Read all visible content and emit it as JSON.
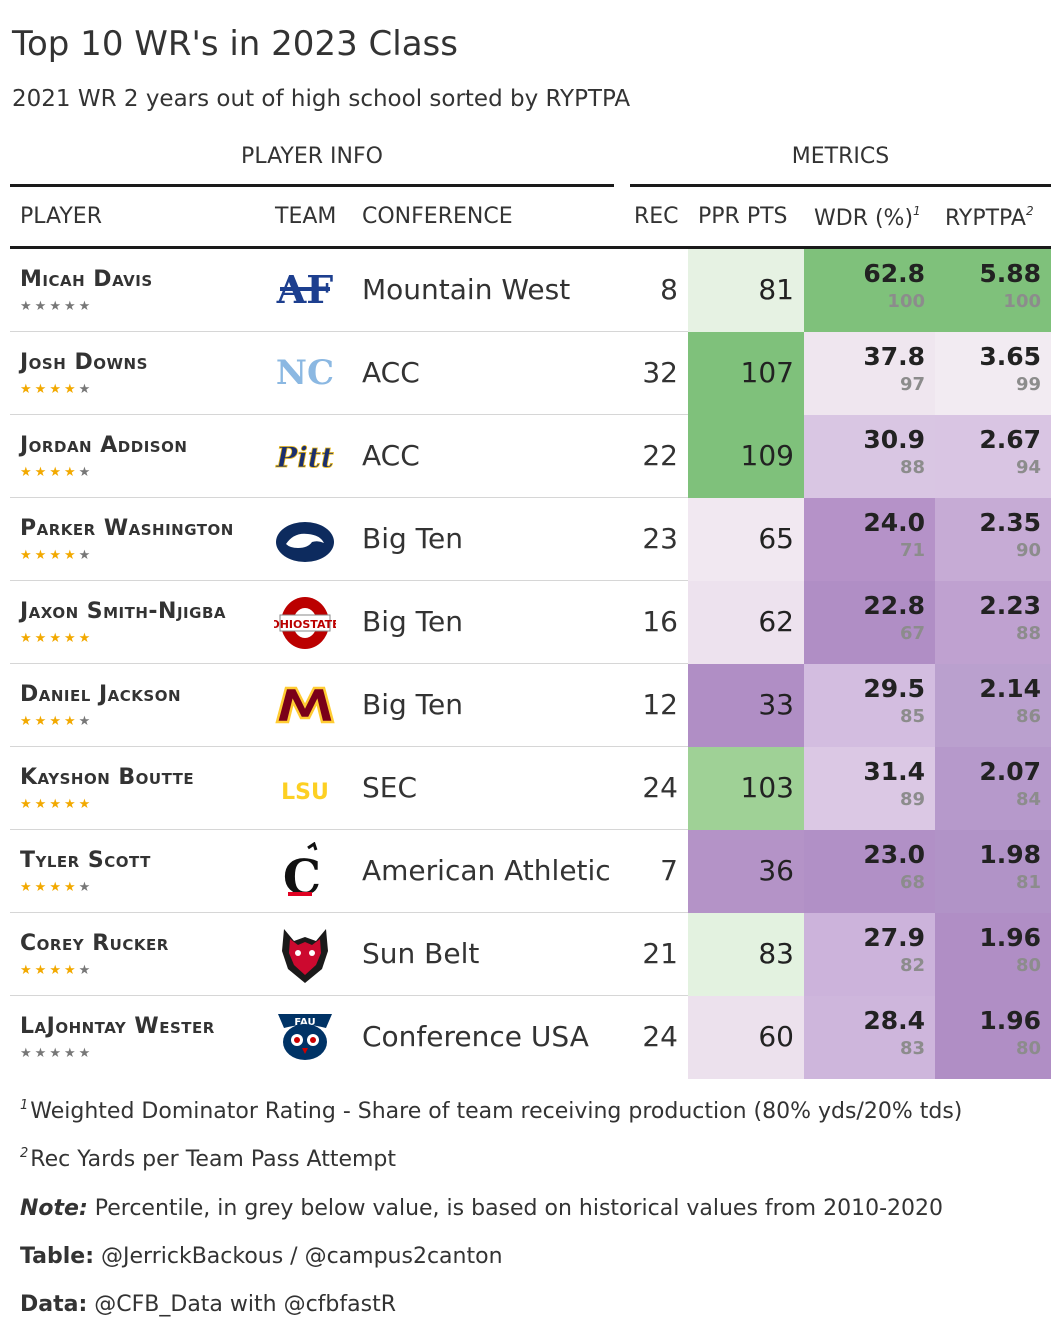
{
  "title": "Top 10 WR's in 2023 Class",
  "subtitle": "2021 WR 2 years out of high school sorted by RYPTPA",
  "spanners": {
    "player_info": "PLAYER INFO",
    "metrics": "METRICS"
  },
  "columns": {
    "player": "PLAYER",
    "team": "TEAM",
    "conference": "CONFERENCE",
    "rec": "REC",
    "ppr": "PPR PTS",
    "wdr": "WDR (%)",
    "wdr_mark": "1",
    "ryptpa": "RYPTPA",
    "ryptpa_mark": "2"
  },
  "colors": {
    "green_strong": "#7fc17b",
    "green_mid": "#9fd196",
    "green_light": "#e3f2e0",
    "purple_strong": "#b08ec5",
    "purple_mid": "#c7acd5",
    "purple_light": "#dcc9e5",
    "neutral": "#f1e8f1",
    "star_on": "#f2a900",
    "star_off": "#777777"
  },
  "chart_data": {
    "type": "table",
    "rows": [
      {
        "player": "Micah Davis",
        "team_logo": "air-force-logo",
        "stars": 0,
        "conference": "Mountain West",
        "rec": "8",
        "ppr": "81",
        "wdr": "62.8",
        "wdr_pct": "100",
        "ryptpa": "5.88",
        "ryptpa_pct": "100",
        "ppr_color": "#e6f2e3",
        "wdr_color": "#7fc17b",
        "ryp_color": "#7fc17b"
      },
      {
        "player": "Josh Downs",
        "team_logo": "unc-logo",
        "stars": 4,
        "conference": "ACC",
        "rec": "32",
        "ppr": "107",
        "wdr": "37.8",
        "wdr_pct": "97",
        "ryptpa": "3.65",
        "ryptpa_pct": "99",
        "ppr_color": "#7fc17b",
        "wdr_color": "#efe6ef",
        "ryp_color": "#f2ebf2"
      },
      {
        "player": "Jordan Addison",
        "team_logo": "pitt-logo",
        "stars": 4,
        "conference": "ACC",
        "rec": "22",
        "ppr": "109",
        "wdr": "30.9",
        "wdr_pct": "88",
        "ryptpa": "2.67",
        "ryptpa_pct": "94",
        "ppr_color": "#7fc17b",
        "wdr_color": "#d9c6e3",
        "ryp_color": "#d9c5e3"
      },
      {
        "player": "Parker Washington",
        "team_logo": "penn-state-logo",
        "stars": 4,
        "conference": "Big Ten",
        "rec": "23",
        "ppr": "65",
        "wdr": "24.0",
        "wdr_pct": "71",
        "ryptpa": "2.35",
        "ryptpa_pct": "90",
        "ppr_color": "#f1e8f1",
        "wdr_color": "#b592c8",
        "ryp_color": "#c6abd5"
      },
      {
        "player": "Jaxon Smith-Njigba",
        "team_logo": "ohio-state-logo",
        "stars": 5,
        "conference": "Big Ten",
        "rec": "16",
        "ppr": "62",
        "wdr": "22.8",
        "wdr_pct": "67",
        "ryptpa": "2.23",
        "ryptpa_pct": "88",
        "ppr_color": "#ede2ee",
        "wdr_color": "#b08ec5",
        "ryp_color": "#bfa1d0"
      },
      {
        "player": "Daniel Jackson",
        "team_logo": "minnesota-logo",
        "stars": 4,
        "conference": "Big Ten",
        "rec": "12",
        "ppr": "33",
        "wdr": "29.5",
        "wdr_pct": "85",
        "ryptpa": "2.14",
        "ryptpa_pct": "86",
        "ppr_color": "#b08ec5",
        "wdr_color": "#d3bde0",
        "ryp_color": "#baa0ce"
      },
      {
        "player": "Kayshon Boutte",
        "team_logo": "lsu-logo",
        "stars": 5,
        "conference": "SEC",
        "rec": "24",
        "ppr": "103",
        "wdr": "31.4",
        "wdr_pct": "89",
        "ryptpa": "2.07",
        "ryptpa_pct": "84",
        "ppr_color": "#9fd196",
        "wdr_color": "#dbc8e4",
        "ryp_color": "#b699cb"
      },
      {
        "player": "Tyler Scott",
        "team_logo": "cincinnati-logo",
        "stars": 4,
        "conference": "American Athletic",
        "rec": "7",
        "ppr": "36",
        "wdr": "23.0",
        "wdr_pct": "68",
        "ryptpa": "1.98",
        "ryptpa_pct": "81",
        "ppr_color": "#b493c7",
        "wdr_color": "#b190c6",
        "ryp_color": "#b193c7"
      },
      {
        "player": "Corey Rucker",
        "team_logo": "arkansas-state-logo",
        "stars": 4,
        "conference": "Sun Belt",
        "rec": "21",
        "ppr": "83",
        "wdr": "27.9",
        "wdr_pct": "82",
        "ryptpa": "1.96",
        "ryptpa_pct": "80",
        "ppr_color": "#e3f2e0",
        "wdr_color": "#ccb3db",
        "ryp_color": "#b08ec5"
      },
      {
        "player": "LaJohntay Wester",
        "team_logo": "fau-logo",
        "stars": 0,
        "conference": "Conference USA",
        "rec": "24",
        "ppr": "60",
        "wdr": "28.4",
        "wdr_pct": "83",
        "ryptpa": "1.96",
        "ryptpa_pct": "80",
        "ppr_color": "#ece1ed",
        "wdr_color": "#ceb6dc",
        "ryp_color": "#b08ec5"
      }
    ]
  },
  "footnotes": {
    "fn1_mark": "1",
    "fn1": "Weighted Dominator Rating - Share of team receiving production (80% yds/20% tds)",
    "fn2_mark": "2",
    "fn2": "Rec Yards per Team Pass Attempt",
    "note_label": "Note:",
    "note": " Percentile, in grey below value, is based on historical values from 2010-2020",
    "table_label": "Table:",
    "table": " @JerrickBackous / @campus2canton",
    "data_label": "Data:",
    "data": " @CFB_Data with @cfbfastR"
  }
}
